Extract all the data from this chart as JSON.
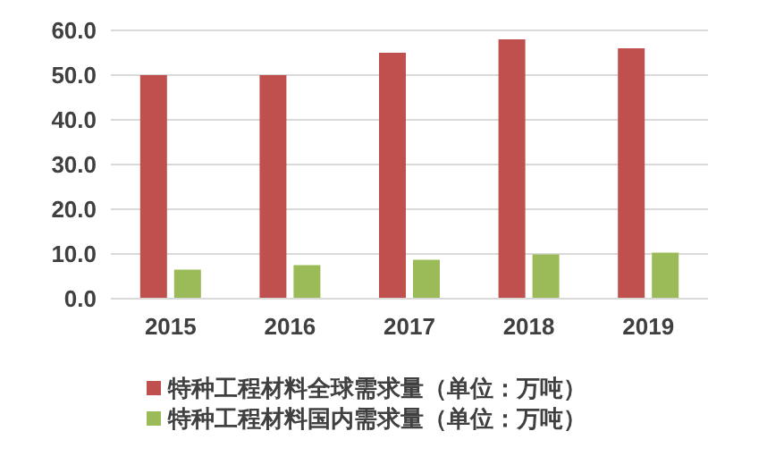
{
  "chart_data": {
    "type": "bar",
    "categories": [
      "2015",
      "2016",
      "2017",
      "2018",
      "2019"
    ],
    "series": [
      {
        "name": "特种工程材料全球需求量（单位：万吨）",
        "color": "#c0504d",
        "values": [
          50,
          50,
          55,
          58,
          56
        ]
      },
      {
        "name": "特种工程材料国内需求量（单位：万吨）",
        "color": "#9bbb59",
        "values": [
          6.5,
          7.5,
          8.7,
          9.9,
          10.3
        ]
      }
    ],
    "ylim": [
      0,
      60
    ],
    "yticks": [
      {
        "value": 0,
        "label": "0.0"
      },
      {
        "value": 10,
        "label": "10.0"
      },
      {
        "value": 20,
        "label": "20.0"
      },
      {
        "value": 30,
        "label": "30.0"
      },
      {
        "value": 40,
        "label": "40.0"
      },
      {
        "value": 50,
        "label": "50.0"
      },
      {
        "value": 60,
        "label": "60.0"
      }
    ],
    "grid": "y",
    "legend": "bottom"
  }
}
